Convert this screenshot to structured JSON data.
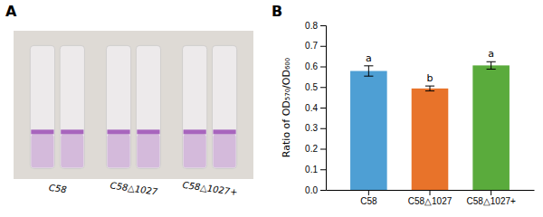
{
  "chart_data": {
    "type": "bar",
    "title": "B",
    "categories": [
      "C58",
      "C58△1027",
      "C58△1027+"
    ],
    "values": [
      0.578,
      0.493,
      0.605
    ],
    "errors": [
      0.025,
      0.012,
      0.018
    ],
    "colors": [
      "#4E9FD4",
      "#E8732A",
      "#5AAB3C"
    ],
    "significance": [
      "a",
      "b",
      "a"
    ],
    "ylabel": "Ratio of OD₅₇₀/OD₆₀₀",
    "ylim": [
      0,
      0.8
    ],
    "yticks": [
      {
        "value": 0,
        "label": "0.0"
      },
      0.1,
      0.2,
      0.3,
      0.4,
      0.5,
      0.6,
      0.7,
      0.8
    ],
    "annotations": [
      "A",
      "C58",
      "C58△1027",
      "C58△1027+"
    ]
  }
}
